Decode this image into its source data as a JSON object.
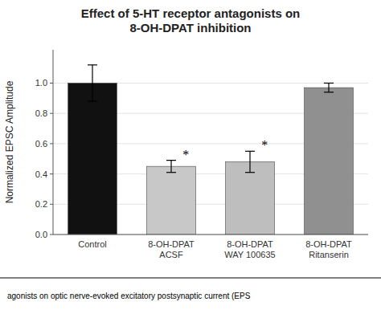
{
  "chart_data": {
    "type": "bar",
    "title": "Effect of 5-HT receptor antagonists on\n8-OH-DPAT inhibition",
    "ylabel": "Normalized EPSC Amplitude",
    "categories": [
      "Control",
      "8-OH-DPAT\nACSF",
      "8-OH-DPAT\nWAY 100635",
      "8-OH-DPAT\nRitanserin"
    ],
    "values": [
      1.0,
      0.45,
      0.48,
      0.97
    ],
    "errors": [
      0.12,
      0.04,
      0.07,
      0.03
    ],
    "colors": [
      "#111111",
      "#c8c8c8",
      "#bebebe",
      "#909090"
    ],
    "ylim": [
      0,
      1.22
    ],
    "yticks": [
      {
        "value": 0.0,
        "label": "0.0"
      },
      0.2,
      0.4,
      0.6,
      0.8,
      {
        "value": 1.0,
        "label": "1.0"
      }
    ],
    "annotations": [
      {
        "text": "*",
        "index": 1
      },
      {
        "text": "*",
        "index": 2
      }
    ],
    "caption": "agonists on optic nerve-evoked excitatory postsynaptic current (EPS"
  }
}
